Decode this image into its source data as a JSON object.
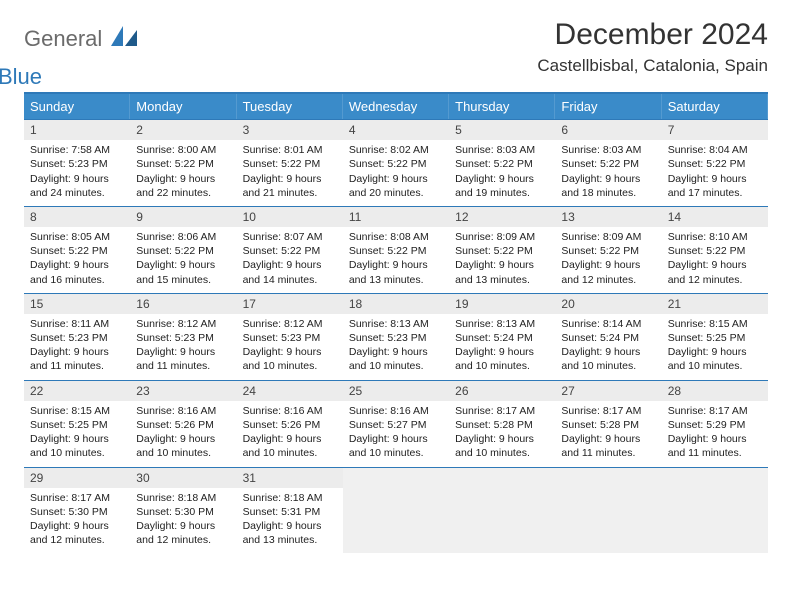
{
  "logo": {
    "text1": "General",
    "text2": "Blue"
  },
  "title": "December 2024",
  "location": "Castellbisbal, Catalonia, Spain",
  "colors": {
    "header_bg": "#3a8bc9",
    "header_text": "#ffffff",
    "rule": "#2e79b8",
    "daynum_bg": "#ececec",
    "logo_gray": "#6b6b6b",
    "logo_blue": "#2e79b8"
  },
  "weekdays": [
    "Sunday",
    "Monday",
    "Tuesday",
    "Wednesday",
    "Thursday",
    "Friday",
    "Saturday"
  ],
  "days": [
    {
      "n": 1,
      "sunrise": "7:58 AM",
      "sunset": "5:23 PM",
      "daylight": "9 hours and 24 minutes."
    },
    {
      "n": 2,
      "sunrise": "8:00 AM",
      "sunset": "5:22 PM",
      "daylight": "9 hours and 22 minutes."
    },
    {
      "n": 3,
      "sunrise": "8:01 AM",
      "sunset": "5:22 PM",
      "daylight": "9 hours and 21 minutes."
    },
    {
      "n": 4,
      "sunrise": "8:02 AM",
      "sunset": "5:22 PM",
      "daylight": "9 hours and 20 minutes."
    },
    {
      "n": 5,
      "sunrise": "8:03 AM",
      "sunset": "5:22 PM",
      "daylight": "9 hours and 19 minutes."
    },
    {
      "n": 6,
      "sunrise": "8:03 AM",
      "sunset": "5:22 PM",
      "daylight": "9 hours and 18 minutes."
    },
    {
      "n": 7,
      "sunrise": "8:04 AM",
      "sunset": "5:22 PM",
      "daylight": "9 hours and 17 minutes."
    },
    {
      "n": 8,
      "sunrise": "8:05 AM",
      "sunset": "5:22 PM",
      "daylight": "9 hours and 16 minutes."
    },
    {
      "n": 9,
      "sunrise": "8:06 AM",
      "sunset": "5:22 PM",
      "daylight": "9 hours and 15 minutes."
    },
    {
      "n": 10,
      "sunrise": "8:07 AM",
      "sunset": "5:22 PM",
      "daylight": "9 hours and 14 minutes."
    },
    {
      "n": 11,
      "sunrise": "8:08 AM",
      "sunset": "5:22 PM",
      "daylight": "9 hours and 13 minutes."
    },
    {
      "n": 12,
      "sunrise": "8:09 AM",
      "sunset": "5:22 PM",
      "daylight": "9 hours and 13 minutes."
    },
    {
      "n": 13,
      "sunrise": "8:09 AM",
      "sunset": "5:22 PM",
      "daylight": "9 hours and 12 minutes."
    },
    {
      "n": 14,
      "sunrise": "8:10 AM",
      "sunset": "5:22 PM",
      "daylight": "9 hours and 12 minutes."
    },
    {
      "n": 15,
      "sunrise": "8:11 AM",
      "sunset": "5:23 PM",
      "daylight": "9 hours and 11 minutes."
    },
    {
      "n": 16,
      "sunrise": "8:12 AM",
      "sunset": "5:23 PM",
      "daylight": "9 hours and 11 minutes."
    },
    {
      "n": 17,
      "sunrise": "8:12 AM",
      "sunset": "5:23 PM",
      "daylight": "9 hours and 10 minutes."
    },
    {
      "n": 18,
      "sunrise": "8:13 AM",
      "sunset": "5:23 PM",
      "daylight": "9 hours and 10 minutes."
    },
    {
      "n": 19,
      "sunrise": "8:13 AM",
      "sunset": "5:24 PM",
      "daylight": "9 hours and 10 minutes."
    },
    {
      "n": 20,
      "sunrise": "8:14 AM",
      "sunset": "5:24 PM",
      "daylight": "9 hours and 10 minutes."
    },
    {
      "n": 21,
      "sunrise": "8:15 AM",
      "sunset": "5:25 PM",
      "daylight": "9 hours and 10 minutes."
    },
    {
      "n": 22,
      "sunrise": "8:15 AM",
      "sunset": "5:25 PM",
      "daylight": "9 hours and 10 minutes."
    },
    {
      "n": 23,
      "sunrise": "8:16 AM",
      "sunset": "5:26 PM",
      "daylight": "9 hours and 10 minutes."
    },
    {
      "n": 24,
      "sunrise": "8:16 AM",
      "sunset": "5:26 PM",
      "daylight": "9 hours and 10 minutes."
    },
    {
      "n": 25,
      "sunrise": "8:16 AM",
      "sunset": "5:27 PM",
      "daylight": "9 hours and 10 minutes."
    },
    {
      "n": 26,
      "sunrise": "8:17 AM",
      "sunset": "5:28 PM",
      "daylight": "9 hours and 10 minutes."
    },
    {
      "n": 27,
      "sunrise": "8:17 AM",
      "sunset": "5:28 PM",
      "daylight": "9 hours and 11 minutes."
    },
    {
      "n": 28,
      "sunrise": "8:17 AM",
      "sunset": "5:29 PM",
      "daylight": "9 hours and 11 minutes."
    },
    {
      "n": 29,
      "sunrise": "8:17 AM",
      "sunset": "5:30 PM",
      "daylight": "9 hours and 12 minutes."
    },
    {
      "n": 30,
      "sunrise": "8:18 AM",
      "sunset": "5:30 PM",
      "daylight": "9 hours and 12 minutes."
    },
    {
      "n": 31,
      "sunrise": "8:18 AM",
      "sunset": "5:31 PM",
      "daylight": "9 hours and 13 minutes."
    }
  ],
  "labels": {
    "sunrise": "Sunrise: ",
    "sunset": "Sunset: ",
    "daylight": "Daylight: "
  },
  "trailing_empty": 4
}
